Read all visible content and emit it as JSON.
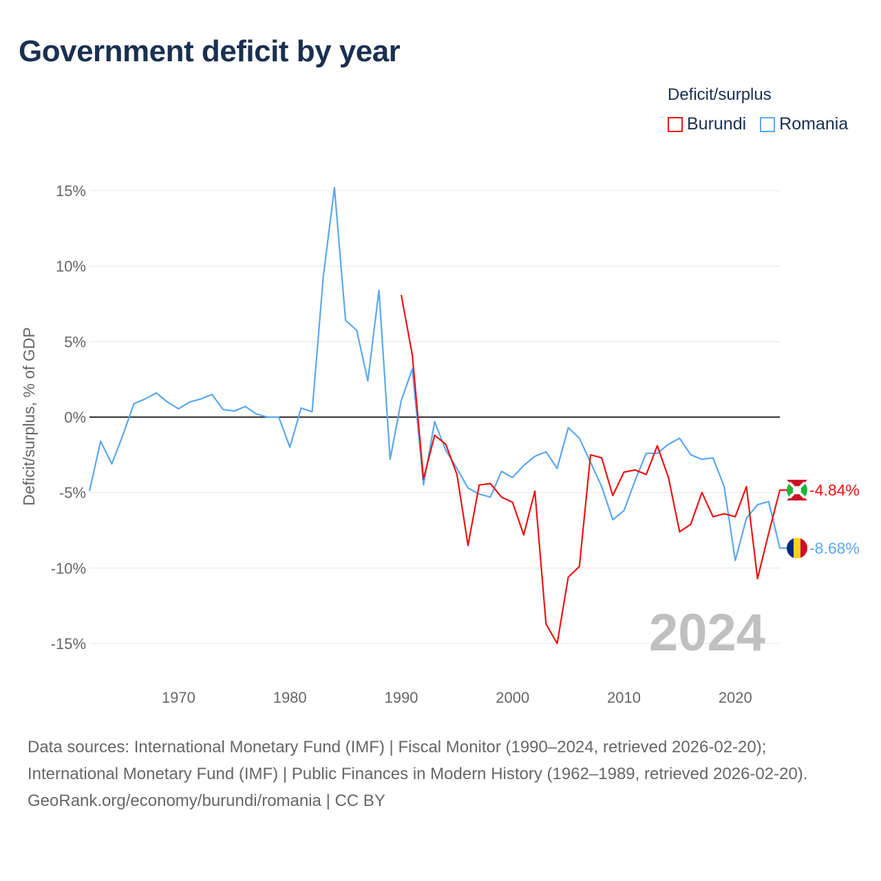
{
  "title": "Government deficit by year",
  "legend": {
    "title": "Deficit/surplus",
    "items": [
      {
        "name": "Burundi",
        "color": "#ee1111"
      },
      {
        "name": "Romania",
        "color": "#5ba7ee"
      }
    ]
  },
  "chart_data": {
    "type": "line",
    "title": "Government deficit by year",
    "xlabel": "",
    "ylabel": "Deficit/surplus, % of GDP",
    "xlim": [
      1962,
      2024
    ],
    "ylim": [
      -17,
      17
    ],
    "xticks": [
      1970,
      1980,
      1990,
      2000,
      2010,
      2020
    ],
    "yticks": [
      15,
      10,
      5,
      0,
      -5,
      -10,
      -15
    ],
    "ytick_labels": [
      "15%",
      "10%",
      "5%",
      "0%",
      "-5%",
      "-10%",
      "-15%"
    ],
    "grid": true,
    "legend_position": "top-right",
    "year_label": "2024",
    "series": [
      {
        "name": "Burundi",
        "color": "#ee1111",
        "end_label": "-4.84%",
        "x": [
          1990,
          1991,
          1992,
          1993,
          1994,
          1995,
          1996,
          1997,
          1998,
          1999,
          2000,
          2001,
          2002,
          2003,
          2004,
          2005,
          2006,
          2007,
          2008,
          2009,
          2010,
          2011,
          2012,
          2013,
          2014,
          2015,
          2016,
          2017,
          2018,
          2019,
          2020,
          2021,
          2022,
          2023,
          2024
        ],
        "values": [
          8.1,
          4.1,
          -4.1,
          -1.2,
          -1.8,
          -3.8,
          -8.5,
          -4.5,
          -4.4,
          -5.3,
          -5.65,
          -7.8,
          -4.9,
          -13.7,
          -15.0,
          -10.6,
          -9.9,
          -2.5,
          -2.7,
          -5.2,
          -3.65,
          -3.5,
          -3.8,
          -1.9,
          -4.0,
          -7.6,
          -7.1,
          -5.0,
          -6.6,
          -6.4,
          -6.6,
          -4.6,
          -10.7,
          -7.7,
          -4.84
        ]
      },
      {
        "name": "Romania",
        "color": "#5ba7ee",
        "end_label": "-8.68%",
        "x": [
          1962,
          1963,
          1964,
          1965,
          1966,
          1967,
          1968,
          1969,
          1970,
          1971,
          1972,
          1973,
          1974,
          1975,
          1976,
          1977,
          1978,
          1979,
          1980,
          1981,
          1982,
          1983,
          1984,
          1985,
          1986,
          1987,
          1988,
          1989,
          1990,
          1991,
          1992,
          1993,
          1994,
          1995,
          1996,
          1997,
          1998,
          1999,
          2000,
          2001,
          2002,
          2003,
          2004,
          2005,
          2006,
          2007,
          2008,
          2009,
          2010,
          2011,
          2012,
          2013,
          2014,
          2015,
          2016,
          2017,
          2018,
          2019,
          2020,
          2021,
          2022,
          2023,
          2024
        ],
        "values": [
          -4.9,
          -1.6,
          -3.1,
          -1.2,
          0.9,
          1.2,
          1.6,
          1.0,
          0.55,
          1.0,
          1.2,
          1.5,
          0.5,
          0.4,
          0.7,
          0.2,
          0.0,
          0.0,
          -2.0,
          0.6,
          0.35,
          9.3,
          15.2,
          6.4,
          5.75,
          2.4,
          8.4,
          -2.8,
          1.1,
          3.2,
          -4.5,
          -0.3,
          -2.2,
          -3.4,
          -4.7,
          -5.1,
          -5.3,
          -3.6,
          -4.0,
          -3.2,
          -2.6,
          -2.3,
          -3.4,
          -0.7,
          -1.4,
          -3.0,
          -4.6,
          -6.8,
          -6.2,
          -4.2,
          -2.4,
          -2.4,
          -1.8,
          -1.4,
          -2.5,
          -2.8,
          -2.7,
          -4.6,
          -9.5,
          -6.7,
          -5.8,
          -5.6,
          -8.68
        ]
      }
    ]
  },
  "footer": {
    "sources": "Data sources: International Monetary Fund (IMF) | Fiscal Monitor (1990–2024, retrieved 2026-02-20); International Monetary Fund (IMF) | Public Finances in Modern History (1962–1989, retrieved 2026-02-20).",
    "attribution": "GeoRank.org/economy/burundi/romania | CC BY"
  }
}
